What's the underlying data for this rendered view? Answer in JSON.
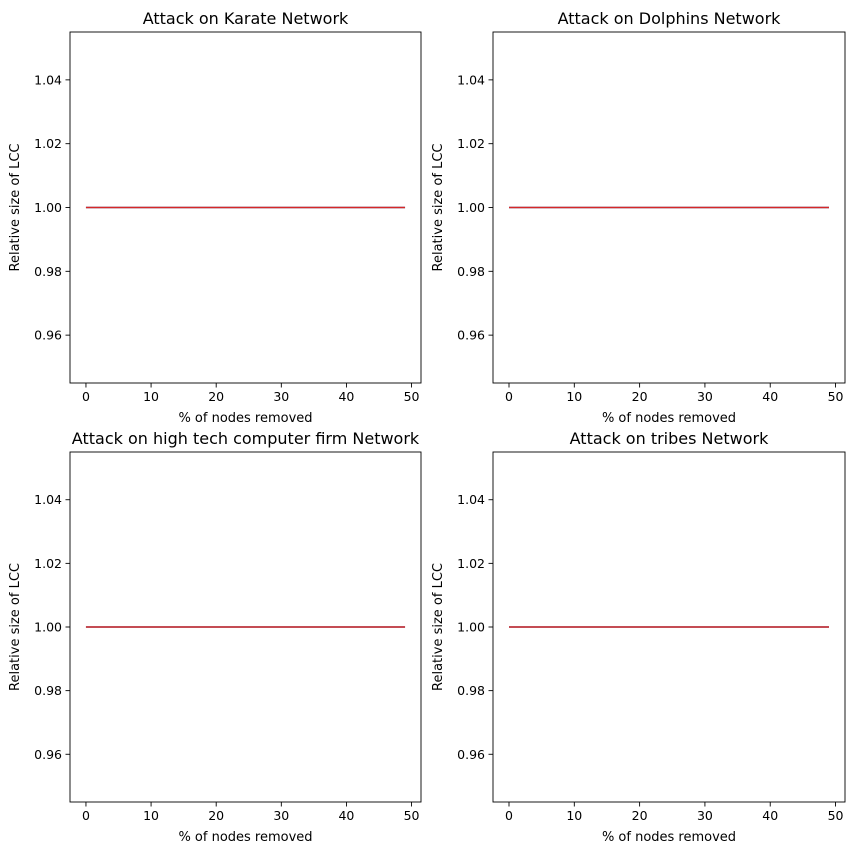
{
  "chart_data": [
    {
      "type": "line",
      "title": "Attack on Karate Network",
      "xlabel": "% of nodes removed",
      "ylabel": "Relative size of LCC",
      "xlim": [
        -2.45,
        51.45
      ],
      "ylim": [
        0.945,
        1.055
      ],
      "xticks": [
        0,
        10,
        20,
        30,
        40,
        50
      ],
      "yticks": [
        0.96,
        0.98,
        1.0,
        1.02,
        1.04
      ],
      "ytick_labels": [
        "0.96",
        "0.98",
        "1.00",
        "1.02",
        "1.04"
      ],
      "grid": false,
      "series": [
        {
          "color": "#1f77b4",
          "x": [
            0,
            49
          ],
          "y": [
            1.0,
            1.0
          ]
        },
        {
          "color": "#d62728",
          "x": [
            0,
            49
          ],
          "y": [
            1.0,
            1.0
          ]
        }
      ]
    },
    {
      "type": "line",
      "title": "Attack on Dolphins Network",
      "xlabel": "% of nodes removed",
      "ylabel": "Relative size of LCC",
      "xlim": [
        -2.45,
        51.45
      ],
      "ylim": [
        0.945,
        1.055
      ],
      "xticks": [
        0,
        10,
        20,
        30,
        40,
        50
      ],
      "yticks": [
        0.96,
        0.98,
        1.0,
        1.02,
        1.04
      ],
      "ytick_labels": [
        "0.96",
        "0.98",
        "1.00",
        "1.02",
        "1.04"
      ],
      "grid": false,
      "series": [
        {
          "color": "#1f77b4",
          "x": [
            0,
            49
          ],
          "y": [
            1.0,
            1.0
          ]
        },
        {
          "color": "#d62728",
          "x": [
            0,
            49
          ],
          "y": [
            1.0,
            1.0
          ]
        }
      ]
    },
    {
      "type": "line",
      "title": "Attack on high tech computer firm Network",
      "xlabel": "% of nodes removed",
      "ylabel": "Relative size of LCC",
      "xlim": [
        -2.45,
        51.45
      ],
      "ylim": [
        0.945,
        1.055
      ],
      "xticks": [
        0,
        10,
        20,
        30,
        40,
        50
      ],
      "yticks": [
        0.96,
        0.98,
        1.0,
        1.02,
        1.04
      ],
      "ytick_labels": [
        "0.96",
        "0.98",
        "1.00",
        "1.02",
        "1.04"
      ],
      "grid": false,
      "series": [
        {
          "color": "#1f77b4",
          "x": [
            0,
            49
          ],
          "y": [
            1.0,
            1.0
          ]
        },
        {
          "color": "#d62728",
          "x": [
            0,
            49
          ],
          "y": [
            1.0,
            1.0
          ]
        }
      ]
    },
    {
      "type": "line",
      "title": "Attack on tribes Network",
      "xlabel": "% of nodes removed",
      "ylabel": "Relative size of LCC",
      "xlim": [
        -2.45,
        51.45
      ],
      "ylim": [
        0.945,
        1.055
      ],
      "xticks": [
        0,
        10,
        20,
        30,
        40,
        50
      ],
      "yticks": [
        0.96,
        0.98,
        1.0,
        1.02,
        1.04
      ],
      "ytick_labels": [
        "0.96",
        "0.98",
        "1.00",
        "1.02",
        "1.04"
      ],
      "grid": false,
      "series": [
        {
          "color": "#1f77b4",
          "x": [
            0,
            49
          ],
          "y": [
            1.0,
            1.0
          ]
        },
        {
          "color": "#d62728",
          "x": [
            0,
            49
          ],
          "y": [
            1.0,
            1.0
          ]
        }
      ]
    }
  ]
}
